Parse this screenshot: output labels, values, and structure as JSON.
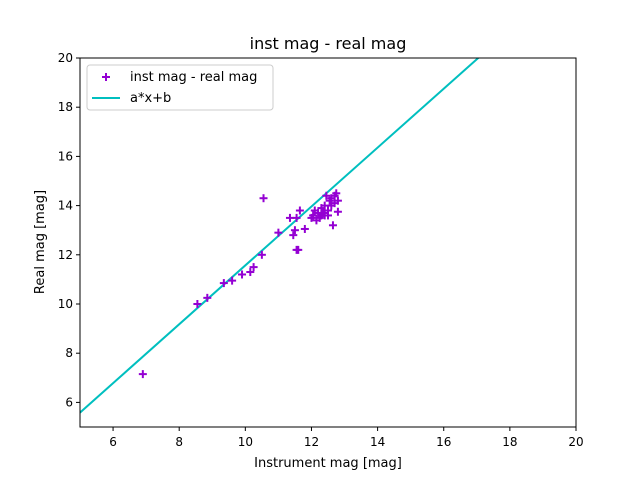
{
  "chart_data": {
    "type": "scatter",
    "title": "inst mag - real mag",
    "xlabel": "Instrument mag [mag]",
    "ylabel": "Real mag [mag]",
    "xlim": [
      5,
      20
    ],
    "ylim": [
      5,
      20
    ],
    "xticks": [
      "6",
      "8",
      "10",
      "12",
      "14",
      "16",
      "18",
      "20"
    ],
    "yticks": [
      "6",
      "8",
      "10",
      "12",
      "14",
      "16",
      "18",
      "20"
    ],
    "grid": false,
    "legend_position": "top-left",
    "series": [
      {
        "name": "inst mag - real mag",
        "kind": "scatter",
        "marker": "plus",
        "color": "#9400d3",
        "points": [
          [
            6.9,
            7.15
          ],
          [
            8.55,
            10.0
          ],
          [
            8.85,
            10.25
          ],
          [
            9.35,
            10.85
          ],
          [
            9.6,
            10.95
          ],
          [
            9.9,
            11.2
          ],
          [
            10.15,
            11.3
          ],
          [
            10.25,
            11.5
          ],
          [
            10.5,
            12.0
          ],
          [
            10.55,
            14.3
          ],
          [
            11.0,
            12.9
          ],
          [
            11.35,
            13.5
          ],
          [
            11.45,
            12.8
          ],
          [
            11.5,
            13.0
          ],
          [
            11.55,
            12.2
          ],
          [
            11.6,
            12.2
          ],
          [
            11.55,
            13.5
          ],
          [
            11.65,
            13.8
          ],
          [
            11.8,
            13.05
          ],
          [
            12.0,
            13.5
          ],
          [
            12.05,
            13.6
          ],
          [
            12.1,
            13.8
          ],
          [
            12.15,
            13.4
          ],
          [
            12.2,
            13.7
          ],
          [
            12.25,
            13.5
          ],
          [
            12.3,
            13.6
          ],
          [
            12.3,
            13.9
          ],
          [
            12.35,
            13.7
          ],
          [
            12.4,
            14.0
          ],
          [
            12.4,
            13.6
          ],
          [
            12.45,
            14.4
          ],
          [
            12.5,
            13.8
          ],
          [
            12.5,
            13.6
          ],
          [
            12.55,
            14.2
          ],
          [
            12.6,
            14.0
          ],
          [
            12.6,
            14.3
          ],
          [
            12.65,
            13.2
          ],
          [
            12.7,
            14.4
          ],
          [
            12.7,
            14.1
          ],
          [
            12.75,
            14.5
          ],
          [
            12.8,
            13.75
          ],
          [
            12.8,
            14.2
          ]
        ]
      },
      {
        "name": "a*x+b",
        "kind": "line",
        "color": "#00bfbf",
        "a": 1.197,
        "b": -0.4
      }
    ]
  }
}
